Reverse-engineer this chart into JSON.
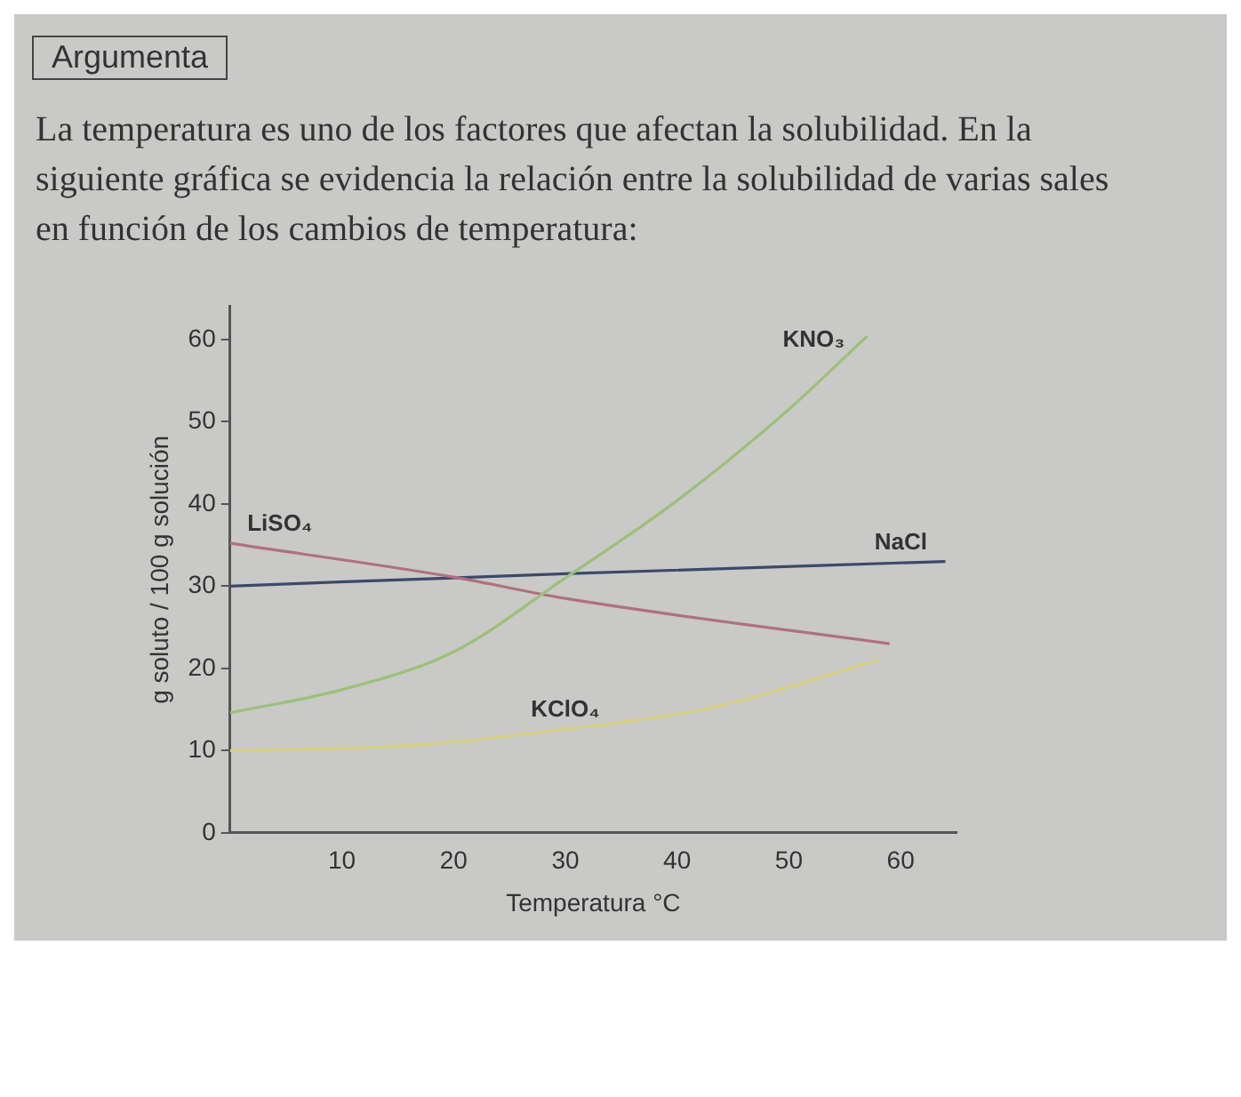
{
  "chart_data": {
    "type": "line",
    "title": "Argumenta",
    "subtitle": "La temperatura es uno de los factores que afectan la solubilidad. En la siguiente gráfica se evidencia la relación entre la solubilidad de varias sales en función de los cambios de temperatura:",
    "xlabel": "Temperatura °C",
    "ylabel": "g soluto / 100 g solución",
    "series": [
      {
        "name": "KNO₃",
        "color": "#9cc07a",
        "x": [
          0,
          10,
          20,
          30,
          40,
          50,
          57
        ],
        "values": [
          14.6,
          17.4,
          22,
          31,
          40.4,
          51.5,
          60.4
        ]
      },
      {
        "name": "LiSO₄",
        "color": "#b07080",
        "x": [
          0,
          20,
          30,
          59
        ],
        "values": [
          35.2,
          31.1,
          28.5,
          23
        ]
      },
      {
        "name": "NaCl",
        "color": "#3a4a6a",
        "x": [
          0,
          30,
          64
        ],
        "values": [
          30,
          31.5,
          33
        ]
      },
      {
        "name": "KClO₄",
        "color": "#d8d080",
        "x": [
          0,
          17,
          30,
          43,
          58
        ],
        "values": [
          10,
          10.7,
          12.6,
          15.2,
          21
        ]
      }
    ],
    "xlim": [
      0,
      65
    ],
    "xticks": [
      10,
      20,
      30,
      40,
      50,
      60
    ],
    "ylim": [
      0,
      64
    ],
    "yticks": [
      0,
      10,
      20,
      30,
      40,
      50,
      60
    ],
    "grid": false,
    "legend": false,
    "marker": "none",
    "line_style": "solid"
  }
}
